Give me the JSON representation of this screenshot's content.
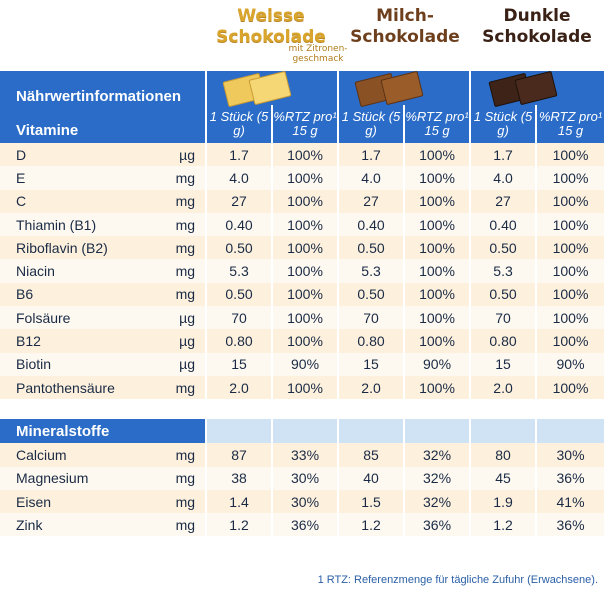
{
  "brands": [
    {
      "line1": "Weisse",
      "line2": "Schokolade",
      "note": "mit Zitronen-geschmack"
    },
    {
      "line1": "Milch-",
      "line2": "Schokolade"
    },
    {
      "line1": "Dunkle",
      "line2": "Schokolade"
    }
  ],
  "header": {
    "title": "Nährwertinformationen",
    "section1": "Vitamine",
    "section2": "Mineralstoffe",
    "col_a": "1 Stück (5 g)",
    "col_b": "%RTZ pro¹ 15 g"
  },
  "vitamins": [
    {
      "name": "D",
      "unit": "µg",
      "v": [
        "1.7",
        "100%",
        "1.7",
        "100%",
        "1.7",
        "100%"
      ]
    },
    {
      "name": "E",
      "unit": "mg",
      "v": [
        "4.0",
        "100%",
        "4.0",
        "100%",
        "4.0",
        "100%"
      ]
    },
    {
      "name": "C",
      "unit": "mg",
      "v": [
        "27",
        "100%",
        "27",
        "100%",
        "27",
        "100%"
      ]
    },
    {
      "name": "Thiamin (B1)",
      "unit": "mg",
      "v": [
        "0.40",
        "100%",
        "0.40",
        "100%",
        "0.40",
        "100%"
      ]
    },
    {
      "name": "Riboflavin (B2)",
      "unit": "mg",
      "v": [
        "0.50",
        "100%",
        "0.50",
        "100%",
        "0.50",
        "100%"
      ]
    },
    {
      "name": "Niacin",
      "unit": "mg",
      "v": [
        "5.3",
        "100%",
        "5.3",
        "100%",
        "5.3",
        "100%"
      ]
    },
    {
      "name": "B6",
      "unit": "mg",
      "v": [
        "0.50",
        "100%",
        "0.50",
        "100%",
        "0.50",
        "100%"
      ]
    },
    {
      "name": "Folsäure",
      "unit": "µg",
      "v": [
        "70",
        "100%",
        "70",
        "100%",
        "70",
        "100%"
      ]
    },
    {
      "name": "B12",
      "unit": "µg",
      "v": [
        "0.80",
        "100%",
        "0.80",
        "100%",
        "0.80",
        "100%"
      ]
    },
    {
      "name": "Biotin",
      "unit": "µg",
      "v": [
        "15",
        "90%",
        "15",
        "90%",
        "15",
        "90%"
      ]
    },
    {
      "name": "Pantothensäure",
      "unit": "mg",
      "v": [
        "2.0",
        "100%",
        "2.0",
        "100%",
        "2.0",
        "100%"
      ]
    }
  ],
  "minerals": [
    {
      "name": "Calcium",
      "unit": "mg",
      "v": [
        "87",
        "33%",
        "85",
        "32%",
        "80",
        "30%"
      ]
    },
    {
      "name": "Magnesium",
      "unit": "mg",
      "v": [
        "38",
        "30%",
        "40",
        "32%",
        "45",
        "36%"
      ]
    },
    {
      "name": "Eisen",
      "unit": "mg",
      "v": [
        "1.4",
        "30%",
        "1.5",
        "32%",
        "1.9",
        "41%"
      ]
    },
    {
      "name": "Zink",
      "unit": "mg",
      "v": [
        "1.2",
        "36%",
        "1.2",
        "36%",
        "1.2",
        "36%"
      ]
    }
  ],
  "footnote": "1  RTZ: Referenzmenge für tägliche Zufuhr (Erwachsene).",
  "colors": {
    "header_blue": "#2a6cc7",
    "row_odd": "#fdf1de",
    "row_even": "#fdf9f1",
    "white_choc": "#efc65a",
    "milk_choc": "#8a5124",
    "dark_choc": "#3e2418"
  }
}
